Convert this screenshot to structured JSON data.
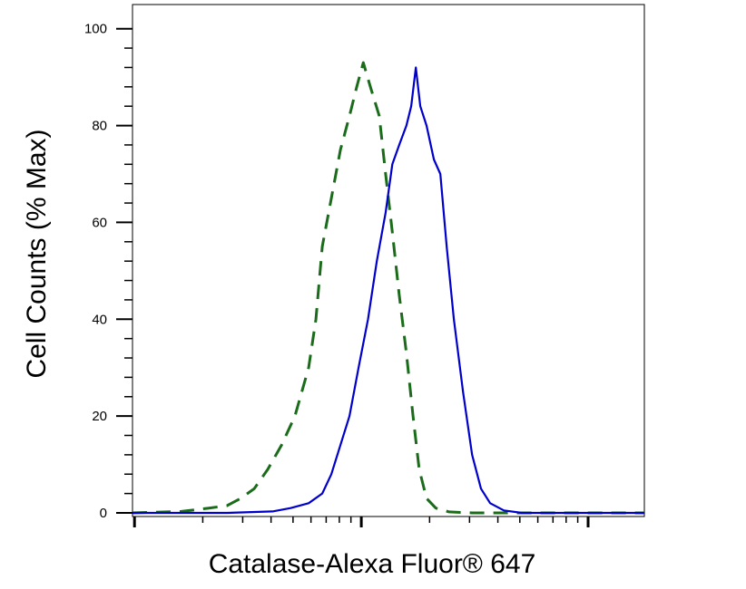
{
  "chart_data": {
    "type": "line",
    "y_label": "Cell Counts (% Max)",
    "x_label": "Catalase-Alexa Fluor® 647",
    "xscale": "log",
    "xlim": [
      0.98,
      177
    ],
    "xticks": [
      1,
      10,
      100
    ],
    "ylim": [
      -0.75,
      105
    ],
    "yticks": [
      0,
      20,
      40,
      60,
      80,
      100
    ],
    "series": [
      {
        "color": "#1a6b1a",
        "dash": true,
        "x": [
          0.98,
          1.61,
          2.13,
          2.56,
          2.94,
          3.37,
          3.87,
          4.45,
          5.1,
          5.86,
          6.31,
          6.73,
          7.38,
          8.09,
          8.87,
          9.55,
          10.2,
          10.96,
          12.0,
          12.8,
          13.7,
          14.7,
          15.8,
          16.9,
          18.0,
          19.4,
          21.3,
          24.4,
          30.8,
          177
        ],
        "values": [
          0,
          0.3,
          1,
          1.5,
          3,
          5,
          9,
          14,
          20,
          30,
          40,
          55,
          65,
          75,
          82,
          88,
          93,
          88,
          82,
          70,
          58,
          45,
          33,
          20,
          9,
          3,
          1,
          0.2,
          0,
          0
        ]
      },
      {
        "color": "#0000cc",
        "dash": false,
        "x": [
          0.98,
          2.56,
          4.06,
          4.88,
          5.86,
          6.73,
          7.38,
          8.09,
          8.87,
          9.73,
          10.7,
          11.7,
          12.8,
          13.7,
          14.7,
          15.8,
          16.6,
          17.4,
          18.2,
          19.4,
          20.9,
          22.3,
          23.8,
          25.6,
          28.1,
          30.8,
          33.7,
          37.0,
          42.5,
          51.1,
          177
        ],
        "values": [
          0,
          0,
          0.3,
          1,
          2,
          4,
          8,
          14,
          20,
          30,
          40,
          52,
          62,
          72,
          76,
          80,
          84,
          92,
          84,
          80,
          73,
          70,
          55,
          40,
          25,
          12,
          5,
          2,
          0.5,
          0,
          0
        ]
      }
    ]
  }
}
